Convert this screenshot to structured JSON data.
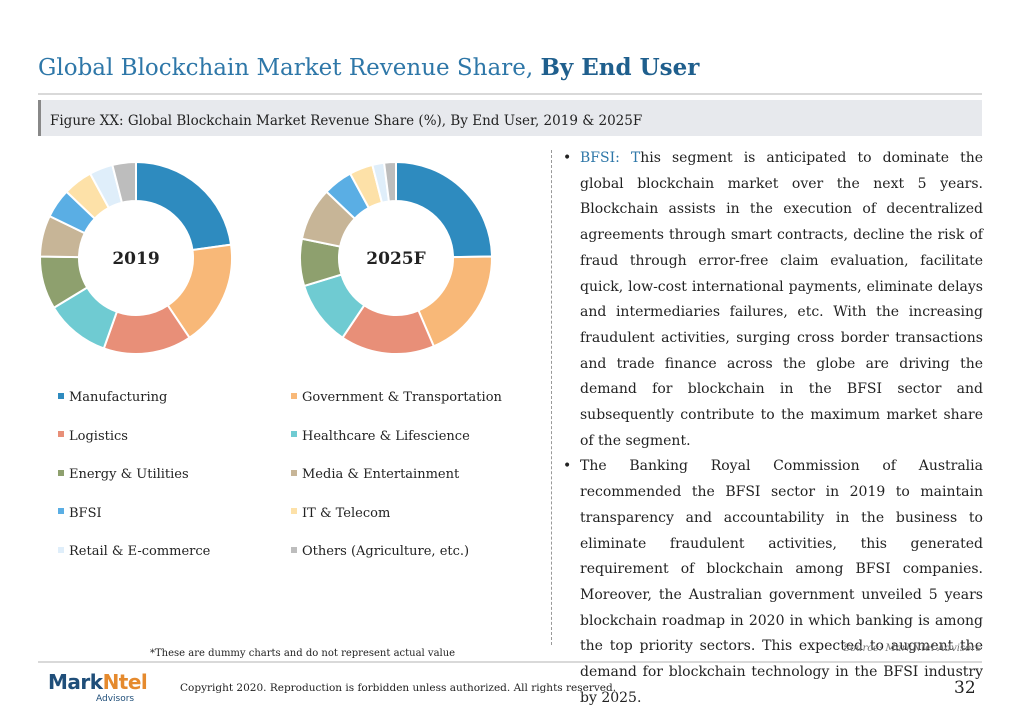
{
  "header": {
    "title_regular": "Global Blockchain Market Revenue Share, ",
    "title_bold": "By End User",
    "figure_caption": "Figure XX: Global Blockchain Market Revenue Share (%), By End User, 2019 & 2025F"
  },
  "colors": {
    "Manufacturing": "#2e8bbf",
    "Government & Transportation": "#f8b878",
    "Logistics": "#e88f78",
    "Healthcare & Lifescience": "#6fcbd2",
    "Energy & Utilities": "#8ea06e",
    "Media & Entertainment": "#c7b597",
    "BFSI": "#5aaee4",
    "IT & Telecom": "#fde1a8",
    "Retail & E-commerce": "#dfeefa",
    "Others (Agriculture, etc.)": "#bdbdbd"
  },
  "chart_data": [
    {
      "type": "pie",
      "center_label": "2019",
      "categories": [
        "Manufacturing",
        "Government & Transportation",
        "Logistics",
        "Healthcare & Lifescience",
        "Energy & Utilities",
        "Media & Entertainment",
        "BFSI",
        "IT & Telecom",
        "Retail & E-commerce",
        "Others (Agriculture, etc.)"
      ],
      "values": [
        23,
        18,
        15,
        11,
        9,
        7,
        5,
        5,
        4,
        4
      ]
    },
    {
      "type": "pie",
      "center_label": "2025F",
      "categories": [
        "Manufacturing",
        "Government & Transportation",
        "Logistics",
        "Healthcare & Lifescience",
        "Energy & Utilities",
        "Media & Entertainment",
        "BFSI",
        "IT & Telecom",
        "Retail & E-commerce",
        "Others (Agriculture, etc.)"
      ],
      "values": [
        25,
        19,
        16,
        11,
        8,
        9,
        5,
        4,
        2,
        2
      ]
    }
  ],
  "legend": [
    "Manufacturing",
    "Government & Transportation",
    "Logistics",
    "Healthcare & Lifescience",
    "Energy & Utilities",
    "Media & Entertainment",
    "BFSI",
    "IT & Telecom",
    "Retail & E-commerce",
    "Others (Agriculture, etc.)"
  ],
  "bullets": [
    {
      "highlight": "BFSI: T",
      "text": "his segment is anticipated to dominate the global blockchain market over the next 5 years. Blockchain assists in the execution of decentralized agreements through smart contracts, decline the risk of fraud through error-free claim evaluation, facilitate quick, low-cost international payments, eliminate delays and intermediaries failures, etc. With the increasing fraudulent activities, surging cross border transactions and trade finance across the globe are driving the demand for blockchain in the BFSI sector and subsequently contribute to the maximum market share of the segment."
    },
    {
      "highlight": "",
      "text": "The Banking Royal Commission of Australia recommended the BFSI sector in 2019 to maintain transparency and accountability in the business to eliminate fraudulent activities, this generated requirement of blockchain among BFSI companies. Moreover, the Australian government unveiled 5 years blockchain roadmap in 2020 in which banking is among the top priority sectors. This expected to augment the demand for blockchain technology in the BFSI industry by 2025."
    }
  ],
  "footer": {
    "note": "*These are dummy charts and do not represent actual value",
    "source": "Source: MarkNtel Advisors",
    "copyright": "Copyright 2020. Reproduction is forbidden unless authorized. All rights reserved.",
    "page_number": "32",
    "logo_main_a": "Mark",
    "logo_main_b": "Ntel",
    "logo_sub": "Advisors"
  }
}
